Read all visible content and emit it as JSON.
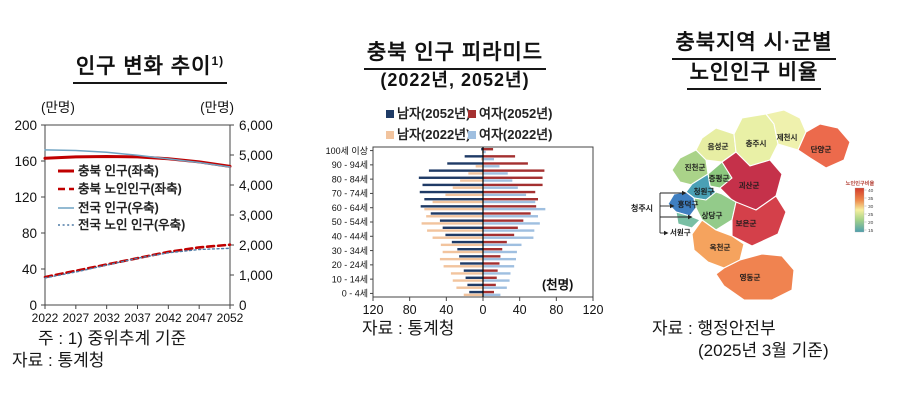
{
  "panels": {
    "trend": {
      "title": "인구 변화 추이",
      "title_sup": "1)",
      "unit_left": "(만명)",
      "unit_right": "(만명)",
      "note": "주 : 1) 중위추계 기준",
      "source": "자료 : 통계청"
    },
    "pyramid": {
      "title": "충북 인구 피라미드",
      "subtitle": "(2022년, 2052년)",
      "source": "자료 : 통계청"
    },
    "map": {
      "title1": "충북지역 시·군별",
      "title2": "노인인구 비율",
      "cheongju_label": "청주시",
      "source1": "자료 : 행정안전부",
      "source2": "(2025년 3월 기준)"
    }
  },
  "chart_data": [
    {
      "type": "line",
      "title": "인구 변화 추이 1) (주: 중위추계 기준)",
      "x": [
        2022,
        2027,
        2032,
        2037,
        2042,
        2047,
        2052
      ],
      "left_axis": {
        "unit": "만명",
        "range": [
          0,
          200
        ],
        "tick_labels": [
          "0",
          "40",
          "80",
          "120",
          "160",
          "200"
        ]
      },
      "right_axis": {
        "unit": "만명",
        "range": [
          0,
          6000
        ],
        "tick_labels": [
          "0",
          "1,000",
          "2,000",
          "3,000",
          "4,000",
          "5,000",
          "6,000"
        ]
      },
      "legend_position": "inside-left",
      "series": [
        {
          "name": "충북 인구(좌축)",
          "axis": "left",
          "style": "solid-thick",
          "color": "#c00000",
          "values": [
            163,
            164.5,
            165,
            164.5,
            162.5,
            159,
            154
          ]
        },
        {
          "name": "충북 노인인구(좌축)",
          "axis": "left",
          "style": "dashed",
          "color": "#c00000",
          "values": [
            31,
            38,
            45,
            52,
            59,
            64,
            67
          ]
        },
        {
          "name": "전국 인구(우축)",
          "axis": "right",
          "style": "solid-thin",
          "color": "#6fa3c2",
          "values": [
            5169,
            5150,
            5090,
            4990,
            4870,
            4750,
            4600
          ]
        },
        {
          "name": "전국 노인 인구(우축)",
          "axis": "right",
          "style": "dotted",
          "color": "#4f7ba6",
          "values": [
            900,
            1100,
            1330,
            1560,
            1740,
            1850,
            1890
          ]
        }
      ]
    },
    {
      "type": "bar",
      "subtype": "population-pyramid",
      "title": "충북 인구 피라미드 (2022년, 2052년)",
      "unit_label": "(천명)",
      "xlim": [
        -120,
        120
      ],
      "x_tick_labels": [
        "120",
        "80",
        "40",
        "0",
        "40",
        "80",
        "120"
      ],
      "age_groups_top_to_bottom": [
        "100세 이상",
        "95 - 99세",
        "90 - 94세",
        "85 - 89세",
        "80 - 84세",
        "75 - 79세",
        "70 - 74세",
        "65 - 69세",
        "60 - 64세",
        "55 - 59세",
        "50 - 54세",
        "45 - 49세",
        "40 - 44세",
        "35 - 39세",
        "30 - 34세",
        "25 - 29세",
        "20 - 24세",
        "15 - 19세",
        "10 - 14세",
        "5 - 9세",
        "0 - 4세"
      ],
      "series": [
        {
          "name": "남자(2052년)",
          "side": "left",
          "color": "#1f3b66",
          "values": [
            2,
            20,
            39,
            59,
            70,
            66,
            69,
            64,
            68,
            57,
            47,
            44,
            41,
            34,
            28,
            26,
            25,
            21,
            19,
            17,
            15
          ]
        },
        {
          "name": "여자(2052년)",
          "side": "right",
          "color": "#a43030",
          "values": [
            11,
            35,
            49,
            67,
            65,
            65,
            57,
            60,
            58,
            52,
            44,
            38,
            34,
            26,
            21,
            19,
            18,
            16,
            15,
            14,
            12
          ]
        },
        {
          "name": "남자(2022년)",
          "side": "left",
          "color": "#f2c49e",
          "values": [
            1,
            2,
            8,
            16,
            25,
            33,
            41,
            55,
            64,
            62,
            67,
            61,
            55,
            46,
            44,
            47,
            43,
            35,
            33,
            29,
            21
          ]
        },
        {
          "name": "여자(2022년)",
          "side": "right",
          "color": "#9fbfe0",
          "values": [
            3,
            12,
            18,
            27,
            32,
            38,
            47,
            57,
            68,
            60,
            62,
            56,
            55,
            42,
            37,
            36,
            34,
            30,
            29,
            26,
            19
          ]
        }
      ]
    },
    {
      "type": "choropleth",
      "title": "충북지역 시·군별 노인인구 비율",
      "colorbar": {
        "title": "노인인구비율",
        "ticks": [
          "40",
          "35",
          "30",
          "25",
          "20",
          "15"
        ],
        "colors": [
          "#d33b2b",
          "#ee8a4c",
          "#f6ef9e",
          "#a6d389",
          "#4e9fad"
        ]
      },
      "regions": [
        {
          "name": "음성군",
          "color": "#e7eea3"
        },
        {
          "name": "충주시",
          "color": "#e9f0a6"
        },
        {
          "name": "제천시",
          "color": "#eff1ad"
        },
        {
          "name": "단양군",
          "color": "#ec6a4c"
        },
        {
          "name": "진천군",
          "color": "#aad389"
        },
        {
          "name": "증평군",
          "color": "#8cc87e"
        },
        {
          "name": "괴산군",
          "color": "#c5314a"
        },
        {
          "name": "청원구",
          "color": "#4aa0b5"
        },
        {
          "name": "흥덕구",
          "color": "#3f7fc1"
        },
        {
          "name": "상당구",
          "color": "#93cb8a"
        },
        {
          "name": "서원구",
          "color": "#79bfa4"
        },
        {
          "name": "보은군",
          "color": "#d4404a"
        },
        {
          "name": "옥천군",
          "color": "#f5a35e"
        },
        {
          "name": "영동군",
          "color": "#f08350"
        }
      ]
    }
  ]
}
